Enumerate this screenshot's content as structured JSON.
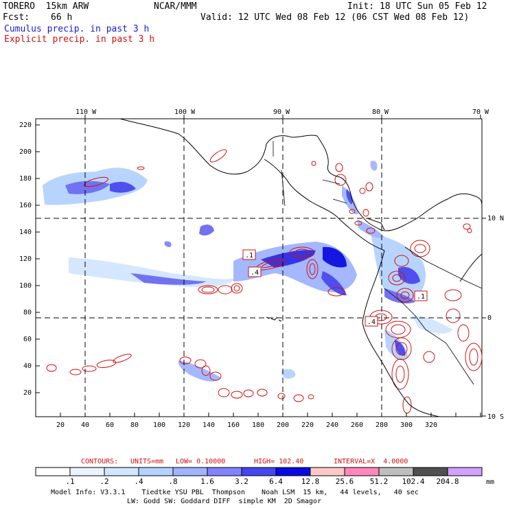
{
  "header": {
    "model": "TORERO  15km ARW",
    "org": "NCAR/MMM",
    "init": "Init: 18 UTC Sun 05 Feb 12",
    "fcst_label": "Fcst:",
    "fcst_value": "66 h",
    "valid": "Valid: 12 UTC Wed 08 Feb 12 (06 CST Wed 08 Feb 12)",
    "legend_cumulus": "Cumulus precip. in past 3 h",
    "legend_explicit": "Explicit precip. in past 3 h"
  },
  "map": {
    "top_lon_labels": [
      "110 W",
      "100 W",
      "90 W",
      "80 W",
      "70 W"
    ],
    "right_lat_labels": [
      "10 N",
      "0",
      "10 S"
    ],
    "left_ticks": [
      "220",
      "200",
      "180",
      "160",
      "140",
      "120",
      "100",
      "80",
      "60",
      "40",
      "20"
    ],
    "bottom_ticks": [
      "20",
      "40",
      "60",
      "80",
      "100",
      "120",
      "140",
      "160",
      "180",
      "200",
      "220",
      "240",
      "260",
      "280",
      "300",
      "320"
    ],
    "markers": [
      ".1",
      ".4",
      ".1",
      ".4"
    ]
  },
  "contours": {
    "label": "CONTOURS:",
    "units": "UNITS=mm",
    "low": "LOW= 0.10000",
    "high": "HIGH= 102.40",
    "interval": "INTERVAL=X  4.0000"
  },
  "colorbar": {
    "unit": "mm",
    "labels": [
      ".1",
      ".2",
      ".4",
      ".8",
      "1.6",
      "3.2",
      "6.4",
      "12.8",
      "25.6",
      "51.2",
      "102.4",
      "204.8"
    ],
    "colors": [
      "#ffffff",
      "#ebf3ff",
      "#d2e6ff",
      "#b4d2ff",
      "#a0b4ff",
      "#8282ff",
      "#4646f0",
      "#0a0ae0",
      "#ffc8c8",
      "#ff88bb",
      "#bebebe",
      "#505050",
      "#d2a0ff"
    ]
  },
  "footer": {
    "line1": "Model Info: V3.3.1    Tiedtke YSU PBL  Thompson    Noah LSM  15 km,   44 levels,   40 sec",
    "line2": "LW: Godd SW: Goddard DIFF  simple KM  2D Smagor"
  }
}
